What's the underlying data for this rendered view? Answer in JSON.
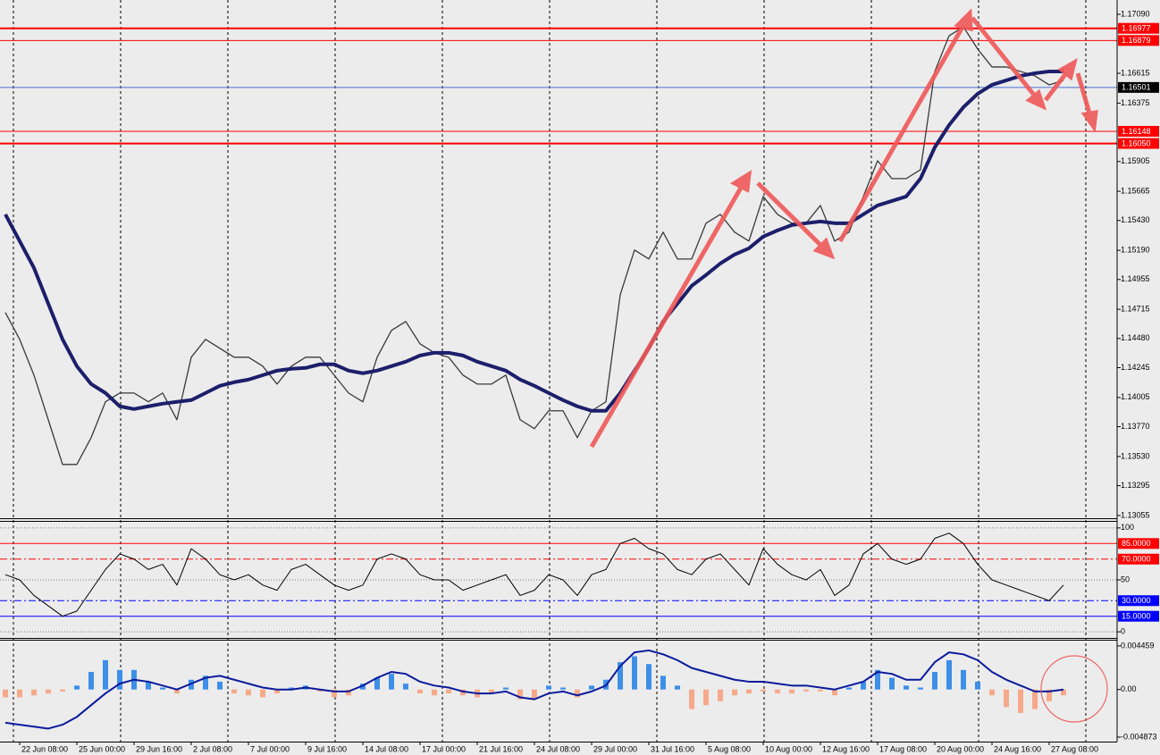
{
  "chart_data": [
    {
      "type": "line",
      "ylim": [
        1.13033,
        1.17205
      ],
      "yticks": [
        {
          "value": 1.1709,
          "label": "1.17090"
        },
        1.16615,
        1.16375,
        1.15905,
        1.15665,
        {
          "value": 1.1543,
          "label": "1.15430"
        },
        {
          "value": 1.1519,
          "label": "1.15190"
        },
        1.14955,
        1.14715,
        {
          "value": 1.1448,
          "label": "1.14480"
        },
        1.14245,
        1.14005,
        {
          "value": 1.1377,
          "label": "1.13770"
        },
        {
          "value": 1.1353,
          "label": "1.13530"
        },
        1.13295,
        1.13055
      ],
      "levels": [
        {
          "value": 1.16977,
          "label": "1.16977",
          "color": "#ff0000",
          "width": 2
        },
        {
          "value": 1.16879,
          "label": "1.16879",
          "color": "#ff0000",
          "width": 1
        },
        {
          "value": 1.16501,
          "label": "1.16501",
          "color": "#4a6fd8",
          "label_bg": "#000000",
          "width": 1
        },
        {
          "value": 1.16148,
          "label": "1.16148",
          "color": "#ff0000",
          "width": 1
        },
        {
          "value": 1.1605,
          "label": "1.16050",
          "color": "#ff0000",
          "width": 2
        }
      ],
      "series": [
        {
          "color": "#3a3a3a",
          "width": 1.3,
          "values": [
            1.14689,
            1.14473,
            1.14185,
            1.13826,
            1.13466,
            1.13466,
            1.13682,
            1.1397,
            1.14041,
            1.14041,
            1.1397,
            1.14041,
            1.13826,
            1.14329,
            1.14473,
            1.14401,
            1.14329,
            1.14329,
            1.14257,
            1.14113,
            1.14257,
            1.14329,
            1.14329,
            1.14185,
            1.14041,
            1.1397,
            1.14329,
            1.14545,
            1.14617,
            1.14437,
            1.14365,
            1.14329,
            1.14185,
            1.14113,
            1.14113,
            1.14185,
            1.13826,
            1.13754,
            1.13898,
            1.13898,
            1.13682,
            1.13898,
            1.1397,
            1.14832,
            1.15192,
            1.1512,
            1.15336,
            1.1512,
            1.1512,
            1.15408,
            1.15479,
            1.15336,
            1.15264,
            1.15623,
            1.15479,
            1.15408,
            1.15408,
            1.15551,
            1.15264,
            1.15336,
            1.15623,
            1.15911,
            1.15767,
            1.15767,
            1.15839,
            1.1663,
            1.16917,
            1.16989,
            1.1681,
            1.16666,
            1.16666,
            1.1663,
            1.16594,
            1.16522,
            1.16558,
            null,
            null,
            null
          ]
        },
        {
          "color": "#1c1f6b",
          "width": 4,
          "values": [
            1.15479,
            1.15264,
            1.15048,
            1.1476,
            1.14473,
            1.14257,
            1.14113,
            1.14041,
            1.13934,
            1.13912,
            1.13934,
            1.13955,
            1.1397,
            1.13984,
            1.14041,
            1.14099,
            1.14128,
            1.14149,
            1.14185,
            1.14221,
            1.14236,
            1.14243,
            1.14272,
            1.14272,
            1.14221,
            1.142,
            1.14221,
            1.14257,
            1.14293,
            1.14343,
            1.14365,
            1.14365,
            1.14343,
            1.14293,
            1.14257,
            1.14221,
            1.14149,
            1.14099,
            1.14041,
            1.13984,
            1.13934,
            1.13898,
            1.13898,
            1.14041,
            1.14221,
            1.14401,
            1.14617,
            1.1476,
            1.14904,
            1.14991,
            1.15084,
            1.15156,
            1.15206,
            1.153,
            1.1535,
            1.15393,
            1.15408,
            1.15422,
            1.15408,
            1.15408,
            1.15479,
            1.15551,
            1.15587,
            1.15623,
            1.15767,
            1.16019,
            1.16198,
            1.16342,
            1.1645,
            1.16522,
            1.16558,
            1.16594,
            1.16615,
            1.1663,
            1.1663,
            null,
            null,
            null
          ]
        }
      ]
    },
    {
      "type": "line",
      "ylim": [
        -5.9,
        105.9
      ],
      "yticks": [
        100,
        50,
        0
      ],
      "grid": true,
      "levels": [
        {
          "value": 85,
          "label": "85.0000",
          "color": "#ff0000",
          "width": 1
        },
        {
          "value": 70,
          "label": "70.0000",
          "color": "#ff0000",
          "width": 1,
          "dash": true
        },
        {
          "value": 30,
          "label": "30.0000",
          "color": "#0000ff",
          "width": 1,
          "dash": true
        },
        {
          "value": 15,
          "label": "15.0000",
          "color": "#0000ff",
          "width": 1
        }
      ],
      "series": [
        {
          "color": "#000000",
          "width": 1,
          "values": [
            55,
            50,
            35,
            25,
            15,
            20,
            40,
            60,
            75,
            70,
            60,
            65,
            45,
            80,
            70,
            55,
            50,
            55,
            45,
            40,
            60,
            65,
            55,
            45,
            40,
            45,
            70,
            75,
            70,
            55,
            50,
            50,
            40,
            45,
            50,
            55,
            35,
            40,
            55,
            50,
            35,
            55,
            60,
            85,
            90,
            80,
            75,
            60,
            55,
            70,
            75,
            60,
            45,
            80,
            65,
            55,
            50,
            60,
            35,
            45,
            75,
            85,
            70,
            65,
            70,
            90,
            95,
            85,
            65,
            50,
            45,
            40,
            35,
            30,
            45,
            null,
            null,
            null
          ]
        }
      ]
    },
    {
      "type": "bar",
      "ylim": [
        -0.00533,
        0.005
      ],
      "yticks": [
        0.004459,
        {
          "value": 0,
          "label": "0.00"
        },
        -0.004873
      ],
      "pos_color": "#3d8fe8",
      "neg_color": "#f6a98a",
      "categories": [
        null,
        "22 Jun 08:00",
        null,
        null,
        null,
        "25 Jun 00:00",
        null,
        null,
        null,
        "29 Jun 16:00",
        null,
        null,
        null,
        "2 Jul 08:00",
        null,
        null,
        null,
        "7 Jul 00:00",
        null,
        null,
        null,
        "9 Jul 16:00",
        null,
        null,
        null,
        "14 Jul 08:00",
        null,
        null,
        null,
        "17 Jul 00:00",
        null,
        null,
        null,
        "21 Jul 16:00",
        null,
        null,
        null,
        "24 Jul 08:00",
        null,
        null,
        null,
        "29 Jul 00:00",
        null,
        null,
        null,
        "31 Jul 16:00",
        null,
        null,
        null,
        "5 Aug 08:00",
        null,
        null,
        null,
        "10 Aug 00:00",
        null,
        null,
        null,
        "12 Aug 16:00",
        null,
        null,
        null,
        "17 Aug 08:00",
        null,
        null,
        null,
        "20 Aug 00:00",
        null,
        null,
        null,
        "24 Aug 16:00",
        null,
        null,
        null,
        "27 Aug 08:00",
        null,
        null,
        null,
        null
      ],
      "values": [
        -0.0008,
        -0.0008,
        -0.0006,
        -0.0004,
        -0.0002,
        0.0004,
        0.0018,
        0.003,
        0.002,
        0.002,
        0.0008,
        0.0002,
        -0.0004,
        0.001,
        0.0014,
        0.0008,
        -0.0004,
        -0.0006,
        -0.0008,
        -0.0004,
        0.0002,
        0.0004,
        -0.0002,
        -0.0008,
        -0.0006,
        0.0006,
        0.0012,
        0.0016,
        0.0006,
        -0.0004,
        -0.0006,
        -0.0004,
        -0.0006,
        -0.0008,
        -0.0004,
        0.0002,
        -0.001,
        -0.001,
        0.0004,
        0.0002,
        -0.0008,
        0.0004,
        0.001,
        0.0028,
        0.0034,
        0.0026,
        0.0014,
        0.0004,
        -0.002,
        -0.0016,
        -0.0012,
        -0.0006,
        -0.0004,
        -0.0002,
        -0.0004,
        -0.0004,
        -0.0002,
        -0.0002,
        -0.0006,
        0.0002,
        0.0008,
        0.002,
        0.0012,
        0.0004,
        0.0002,
        0.0018,
        0.003,
        0.002,
        0.0008,
        -0.0006,
        -0.0018,
        -0.0024,
        -0.002,
        -0.0012,
        -0.0006,
        null,
        null,
        null
      ],
      "series": [
        {
          "color": "#0a1a9c",
          "width": 2,
          "values": [
            -0.0034,
            -0.0036,
            -0.0038,
            -0.004,
            -0.0036,
            -0.0028,
            -0.0016,
            -0.0004,
            0.0006,
            0.001,
            0.0008,
            0.0004,
            0,
            0.0006,
            0.0012,
            0.0014,
            0.001,
            0.0006,
            0.0002,
            0,
            0,
            0.0002,
            0,
            -0.0002,
            -0.0002,
            0.0004,
            0.0012,
            0.0018,
            0.0016,
            0.0008,
            0.0004,
            0.0002,
            -0.0002,
            -0.0004,
            -0.0004,
            -0.0002,
            -0.0008,
            -0.001,
            -0.0004,
            -0.0002,
            -0.0006,
            -0.0002,
            0.0004,
            0.0024,
            0.0038,
            0.004,
            0.0036,
            0.003,
            0.0022,
            0.0018,
            0.0014,
            0.001,
            0.0008,
            0.0008,
            0.0006,
            0.0004,
            0.0004,
            0.0002,
            0,
            0.0004,
            0.0008,
            0.0018,
            0.0016,
            0.001,
            0.001,
            0.0028,
            0.0038,
            0.0036,
            0.003,
            0.0018,
            0.001,
            0.0004,
            -0.0002,
            -0.0002,
            0,
            null,
            null,
            null
          ]
        }
      ]
    }
  ]
}
